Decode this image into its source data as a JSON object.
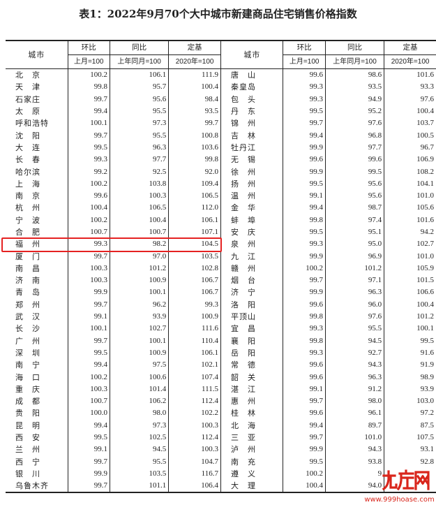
{
  "title": "表1：2022年9月70个大中城市新建商品住宅销售价格指数",
  "headers": {
    "city": "城市",
    "mom": "环比",
    "yoy": "同比",
    "fixed": "定基",
    "mom_base": "上月=100",
    "yoy_base": "上年同月=100",
    "fixed_base": "2020年=100"
  },
  "left": [
    [
      "北　京",
      "100.2",
      "106.1",
      "111.9"
    ],
    [
      "天　津",
      "99.8",
      "95.7",
      "100.4"
    ],
    [
      "石家庄",
      "99.7",
      "95.6",
      "98.4"
    ],
    [
      "太　原",
      "99.4",
      "95.5",
      "93.5"
    ],
    [
      "呼和浩特",
      "100.1",
      "97.3",
      "99.7"
    ],
    [
      "沈　阳",
      "99.7",
      "95.5",
      "100.8"
    ],
    [
      "大　连",
      "99.5",
      "96.3",
      "103.6"
    ],
    [
      "长　春",
      "99.3",
      "97.7",
      "99.8"
    ],
    [
      "哈尔滨",
      "99.2",
      "92.5",
      "92.0"
    ],
    [
      "上　海",
      "100.2",
      "103.8",
      "109.4"
    ],
    [
      "南　京",
      "99.6",
      "100.3",
      "106.5"
    ],
    [
      "杭　州",
      "100.4",
      "106.5",
      "112.0"
    ],
    [
      "宁　波",
      "100.2",
      "100.4",
      "106.1"
    ],
    [
      "合　肥",
      "100.7",
      "100.7",
      "107.1"
    ],
    [
      "福　州",
      "99.3",
      "98.2",
      "104.5"
    ],
    [
      "厦　门",
      "99.7",
      "97.0",
      "103.5"
    ],
    [
      "南　昌",
      "100.3",
      "101.2",
      "102.8"
    ],
    [
      "济　南",
      "100.3",
      "100.9",
      "106.7"
    ],
    [
      "青　岛",
      "99.9",
      "100.1",
      "106.7"
    ],
    [
      "郑　州",
      "99.7",
      "96.2",
      "99.3"
    ],
    [
      "武　汉",
      "99.1",
      "93.9",
      "100.9"
    ],
    [
      "长　沙",
      "100.1",
      "102.7",
      "111.6"
    ],
    [
      "广　州",
      "99.7",
      "100.1",
      "110.4"
    ],
    [
      "深　圳",
      "99.5",
      "100.9",
      "106.1"
    ],
    [
      "南　宁",
      "99.4",
      "97.5",
      "102.1"
    ],
    [
      "海　口",
      "100.2",
      "100.6",
      "107.4"
    ],
    [
      "重　庆",
      "100.3",
      "101.4",
      "111.5"
    ],
    [
      "成　都",
      "100.7",
      "106.2",
      "112.4"
    ],
    [
      "贵　阳",
      "100.0",
      "98.0",
      "102.2"
    ],
    [
      "昆　明",
      "99.4",
      "97.3",
      "100.3"
    ],
    [
      "西　安",
      "99.5",
      "102.5",
      "112.4"
    ],
    [
      "兰　州",
      "99.1",
      "94.5",
      "100.3"
    ],
    [
      "西　宁",
      "99.7",
      "95.5",
      "104.7"
    ],
    [
      "银　川",
      "99.9",
      "103.5",
      "116.7"
    ],
    [
      "乌鲁木齐",
      "99.7",
      "101.1",
      "106.4"
    ]
  ],
  "right": [
    [
      "唐　山",
      "99.6",
      "98.6",
      "101.6"
    ],
    [
      "秦皇岛",
      "99.3",
      "93.5",
      "93.3"
    ],
    [
      "包　头",
      "99.3",
      "94.9",
      "97.6"
    ],
    [
      "丹　东",
      "99.5",
      "95.2",
      "100.4"
    ],
    [
      "锦　州",
      "99.7",
      "97.6",
      "103.7"
    ],
    [
      "吉　林",
      "99.4",
      "96.8",
      "100.5"
    ],
    [
      "牡丹江",
      "99.9",
      "97.7",
      "96.7"
    ],
    [
      "无　锡",
      "99.6",
      "99.6",
      "106.9"
    ],
    [
      "徐　州",
      "99.9",
      "99.5",
      "108.2"
    ],
    [
      "扬　州",
      "99.5",
      "95.6",
      "104.1"
    ],
    [
      "温　州",
      "99.1",
      "95.6",
      "101.0"
    ],
    [
      "金　华",
      "99.4",
      "98.7",
      "105.6"
    ],
    [
      "蚌　埠",
      "99.8",
      "97.4",
      "101.6"
    ],
    [
      "安　庆",
      "99.5",
      "95.1",
      "94.2"
    ],
    [
      "泉　州",
      "99.3",
      "95.0",
      "102.7"
    ],
    [
      "九　江",
      "99.9",
      "96.9",
      "101.0"
    ],
    [
      "赣　州",
      "100.2",
      "101.2",
      "105.9"
    ],
    [
      "烟　台",
      "99.7",
      "97.1",
      "101.5"
    ],
    [
      "济　宁",
      "99.9",
      "96.3",
      "106.6"
    ],
    [
      "洛　阳",
      "99.6",
      "96.0",
      "100.4"
    ],
    [
      "平顶山",
      "99.8",
      "97.6",
      "101.2"
    ],
    [
      "宜　昌",
      "99.3",
      "95.5",
      "100.1"
    ],
    [
      "襄　阳",
      "99.8",
      "94.5",
      "99.5"
    ],
    [
      "岳　阳",
      "99.3",
      "92.7",
      "91.6"
    ],
    [
      "常　德",
      "99.6",
      "94.3",
      "91.9"
    ],
    [
      "韶　关",
      "99.6",
      "96.3",
      "98.9"
    ],
    [
      "湛　江",
      "99.1",
      "91.2",
      "93.9"
    ],
    [
      "惠　州",
      "99.7",
      "98.0",
      "103.0"
    ],
    [
      "桂　林",
      "99.6",
      "96.1",
      "97.2"
    ],
    [
      "北　海",
      "99.4",
      "89.7",
      "87.5"
    ],
    [
      "三　亚",
      "99.7",
      "101.0",
      "107.5"
    ],
    [
      "泸　州",
      "99.9",
      "94.3",
      "93.1"
    ],
    [
      "南　充",
      "99.5",
      "93.8",
      "92.8"
    ],
    [
      "遵　义",
      "100.2",
      "9",
      ""
    ],
    [
      "大　理",
      "100.4",
      "94.0",
      ""
    ]
  ],
  "highlight_color": "#e52222",
  "watermark": {
    "logo": "九房网",
    "url": "www.999hoase.com"
  }
}
